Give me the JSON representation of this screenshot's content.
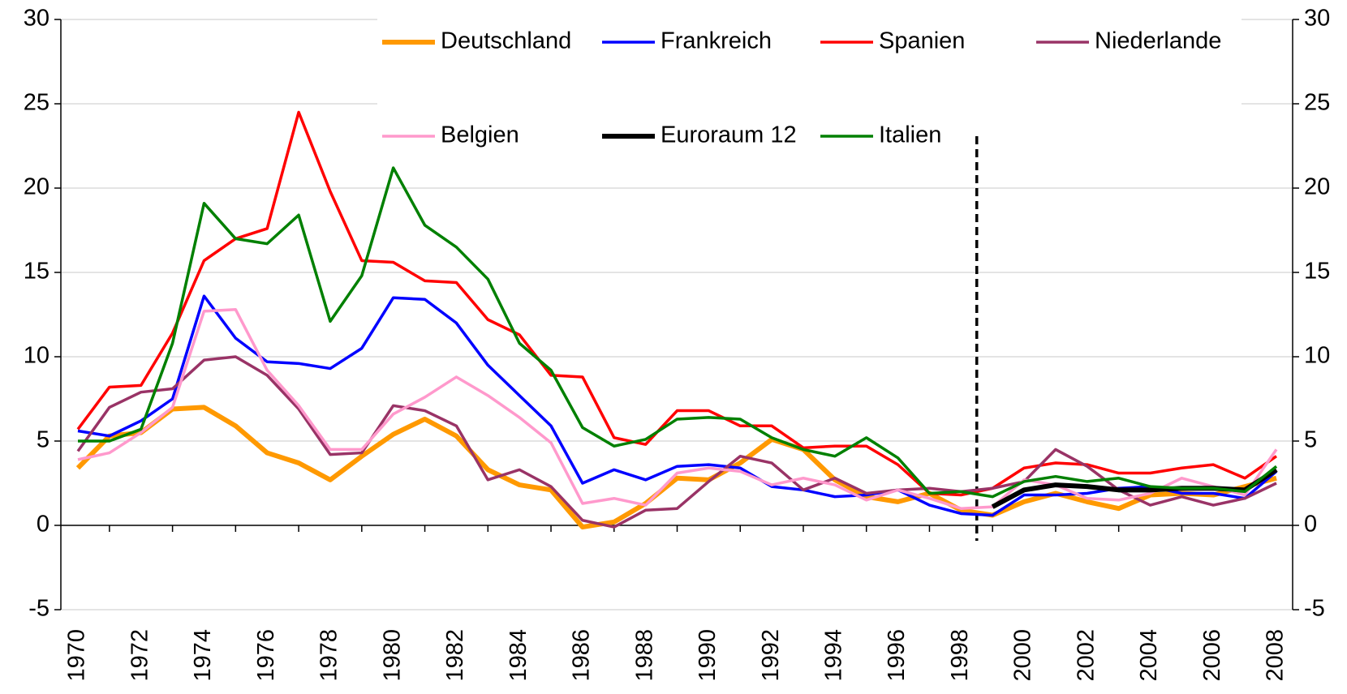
{
  "chart_data": {
    "type": "line",
    "categories": [
      "1970",
      null,
      "1972",
      null,
      "1974",
      null,
      "1976",
      null,
      "1978",
      null,
      "1980",
      null,
      "1982",
      null,
      "1984",
      null,
      "1986",
      null,
      "1988",
      null,
      "1990",
      null,
      "1992",
      null,
      "1994",
      null,
      "1996",
      null,
      "1998",
      null,
      "2000",
      null,
      "2002",
      null,
      "2004",
      null,
      "2006",
      null,
      "2008"
    ],
    "ylim": [
      -5,
      30
    ],
    "yticks": [
      -5,
      0,
      5,
      10,
      15,
      20,
      25,
      30
    ],
    "y2lim": [
      -5,
      30
    ],
    "y2ticks": [
      -5,
      0,
      5,
      10,
      15,
      20,
      25,
      30
    ],
    "grid": true,
    "series": [
      {
        "name": "Deutschland",
        "color": "#ff9900",
        "values": [
          3.4,
          5.3,
          5.5,
          6.9,
          7.0,
          5.9,
          4.3,
          3.7,
          2.7,
          4.1,
          5.4,
          6.3,
          5.3,
          3.3,
          2.4,
          2.1,
          -0.1,
          0.2,
          1.3,
          2.8,
          2.7,
          3.7,
          5.1,
          4.5,
          2.7,
          1.7,
          1.4,
          1.9,
          0.9,
          0.6,
          1.4,
          1.9,
          1.4,
          1.0,
          1.8,
          1.9,
          1.8,
          2.3,
          2.8
        ]
      },
      {
        "name": "Frankreich",
        "color": "#0000ff",
        "values": [
          5.6,
          5.3,
          6.2,
          7.5,
          13.6,
          11.1,
          9.7,
          9.6,
          9.3,
          10.5,
          13.5,
          13.4,
          12.0,
          9.5,
          7.7,
          5.9,
          2.5,
          3.3,
          2.7,
          3.5,
          3.6,
          3.4,
          2.3,
          2.1,
          1.7,
          1.8,
          2.1,
          1.2,
          0.7,
          0.6,
          1.8,
          1.8,
          1.9,
          2.2,
          2.3,
          1.9,
          1.9,
          1.6,
          3.2
        ]
      },
      {
        "name": "Spanien",
        "color": "#ff0000",
        "values": [
          5.7,
          8.2,
          8.3,
          11.4,
          15.7,
          17.0,
          17.6,
          24.5,
          19.8,
          15.7,
          15.6,
          14.5,
          14.4,
          12.2,
          11.3,
          8.9,
          8.8,
          5.2,
          4.8,
          6.8,
          6.8,
          5.9,
          5.9,
          4.6,
          4.7,
          4.7,
          3.6,
          1.9,
          1.8,
          2.2,
          3.4,
          3.7,
          3.6,
          3.1,
          3.1,
          3.4,
          3.6,
          2.8,
          4.1
        ]
      },
      {
        "name": "Niederlande",
        "color": "#993366",
        "values": [
          4.4,
          7.0,
          7.9,
          8.1,
          9.8,
          10.0,
          8.9,
          6.9,
          4.2,
          4.3,
          7.1,
          6.8,
          5.9,
          2.7,
          3.3,
          2.3,
          0.3,
          -0.1,
          0.9,
          1.0,
          2.6,
          4.1,
          3.7,
          2.1,
          2.8,
          1.9,
          2.1,
          2.2,
          2.0,
          2.2,
          2.6,
          4.5,
          3.5,
          2.1,
          1.2,
          1.7,
          1.2,
          1.6,
          2.5
        ]
      },
      {
        "name": "Belgien",
        "color": "#ff99cc",
        "values": [
          3.9,
          4.3,
          5.5,
          7.0,
          12.7,
          12.8,
          9.2,
          7.1,
          4.5,
          4.5,
          6.6,
          7.6,
          8.8,
          7.7,
          6.4,
          4.9,
          1.3,
          1.6,
          1.2,
          3.1,
          3.4,
          3.2,
          2.4,
          2.8,
          2.4,
          1.5,
          2.1,
          1.6,
          1.0,
          1.1,
          2.7,
          2.4,
          1.6,
          1.5,
          1.9,
          2.8,
          2.3,
          1.8,
          4.5
        ]
      },
      {
        "name": "Euroraum 12",
        "color": "#000000",
        "values": [
          null,
          null,
          null,
          null,
          null,
          null,
          null,
          null,
          null,
          null,
          null,
          null,
          null,
          null,
          null,
          null,
          null,
          null,
          null,
          null,
          null,
          null,
          null,
          null,
          null,
          null,
          null,
          null,
          null,
          1.1,
          2.1,
          2.4,
          2.3,
          2.1,
          2.1,
          2.2,
          2.2,
          2.1,
          3.3
        ]
      },
      {
        "name": "Italien",
        "color": "#008000",
        "values": [
          5.0,
          5.0,
          5.7,
          10.8,
          19.1,
          17.0,
          16.7,
          18.4,
          12.1,
          14.8,
          21.2,
          17.8,
          16.5,
          14.6,
          10.8,
          9.2,
          5.8,
          4.7,
          5.1,
          6.3,
          6.4,
          6.3,
          5.2,
          4.5,
          4.1,
          5.2,
          4.0,
          1.9,
          2.0,
          1.7,
          2.6,
          2.9,
          2.6,
          2.8,
          2.3,
          2.2,
          2.2,
          2.0,
          3.5
        ]
      }
    ]
  }
}
